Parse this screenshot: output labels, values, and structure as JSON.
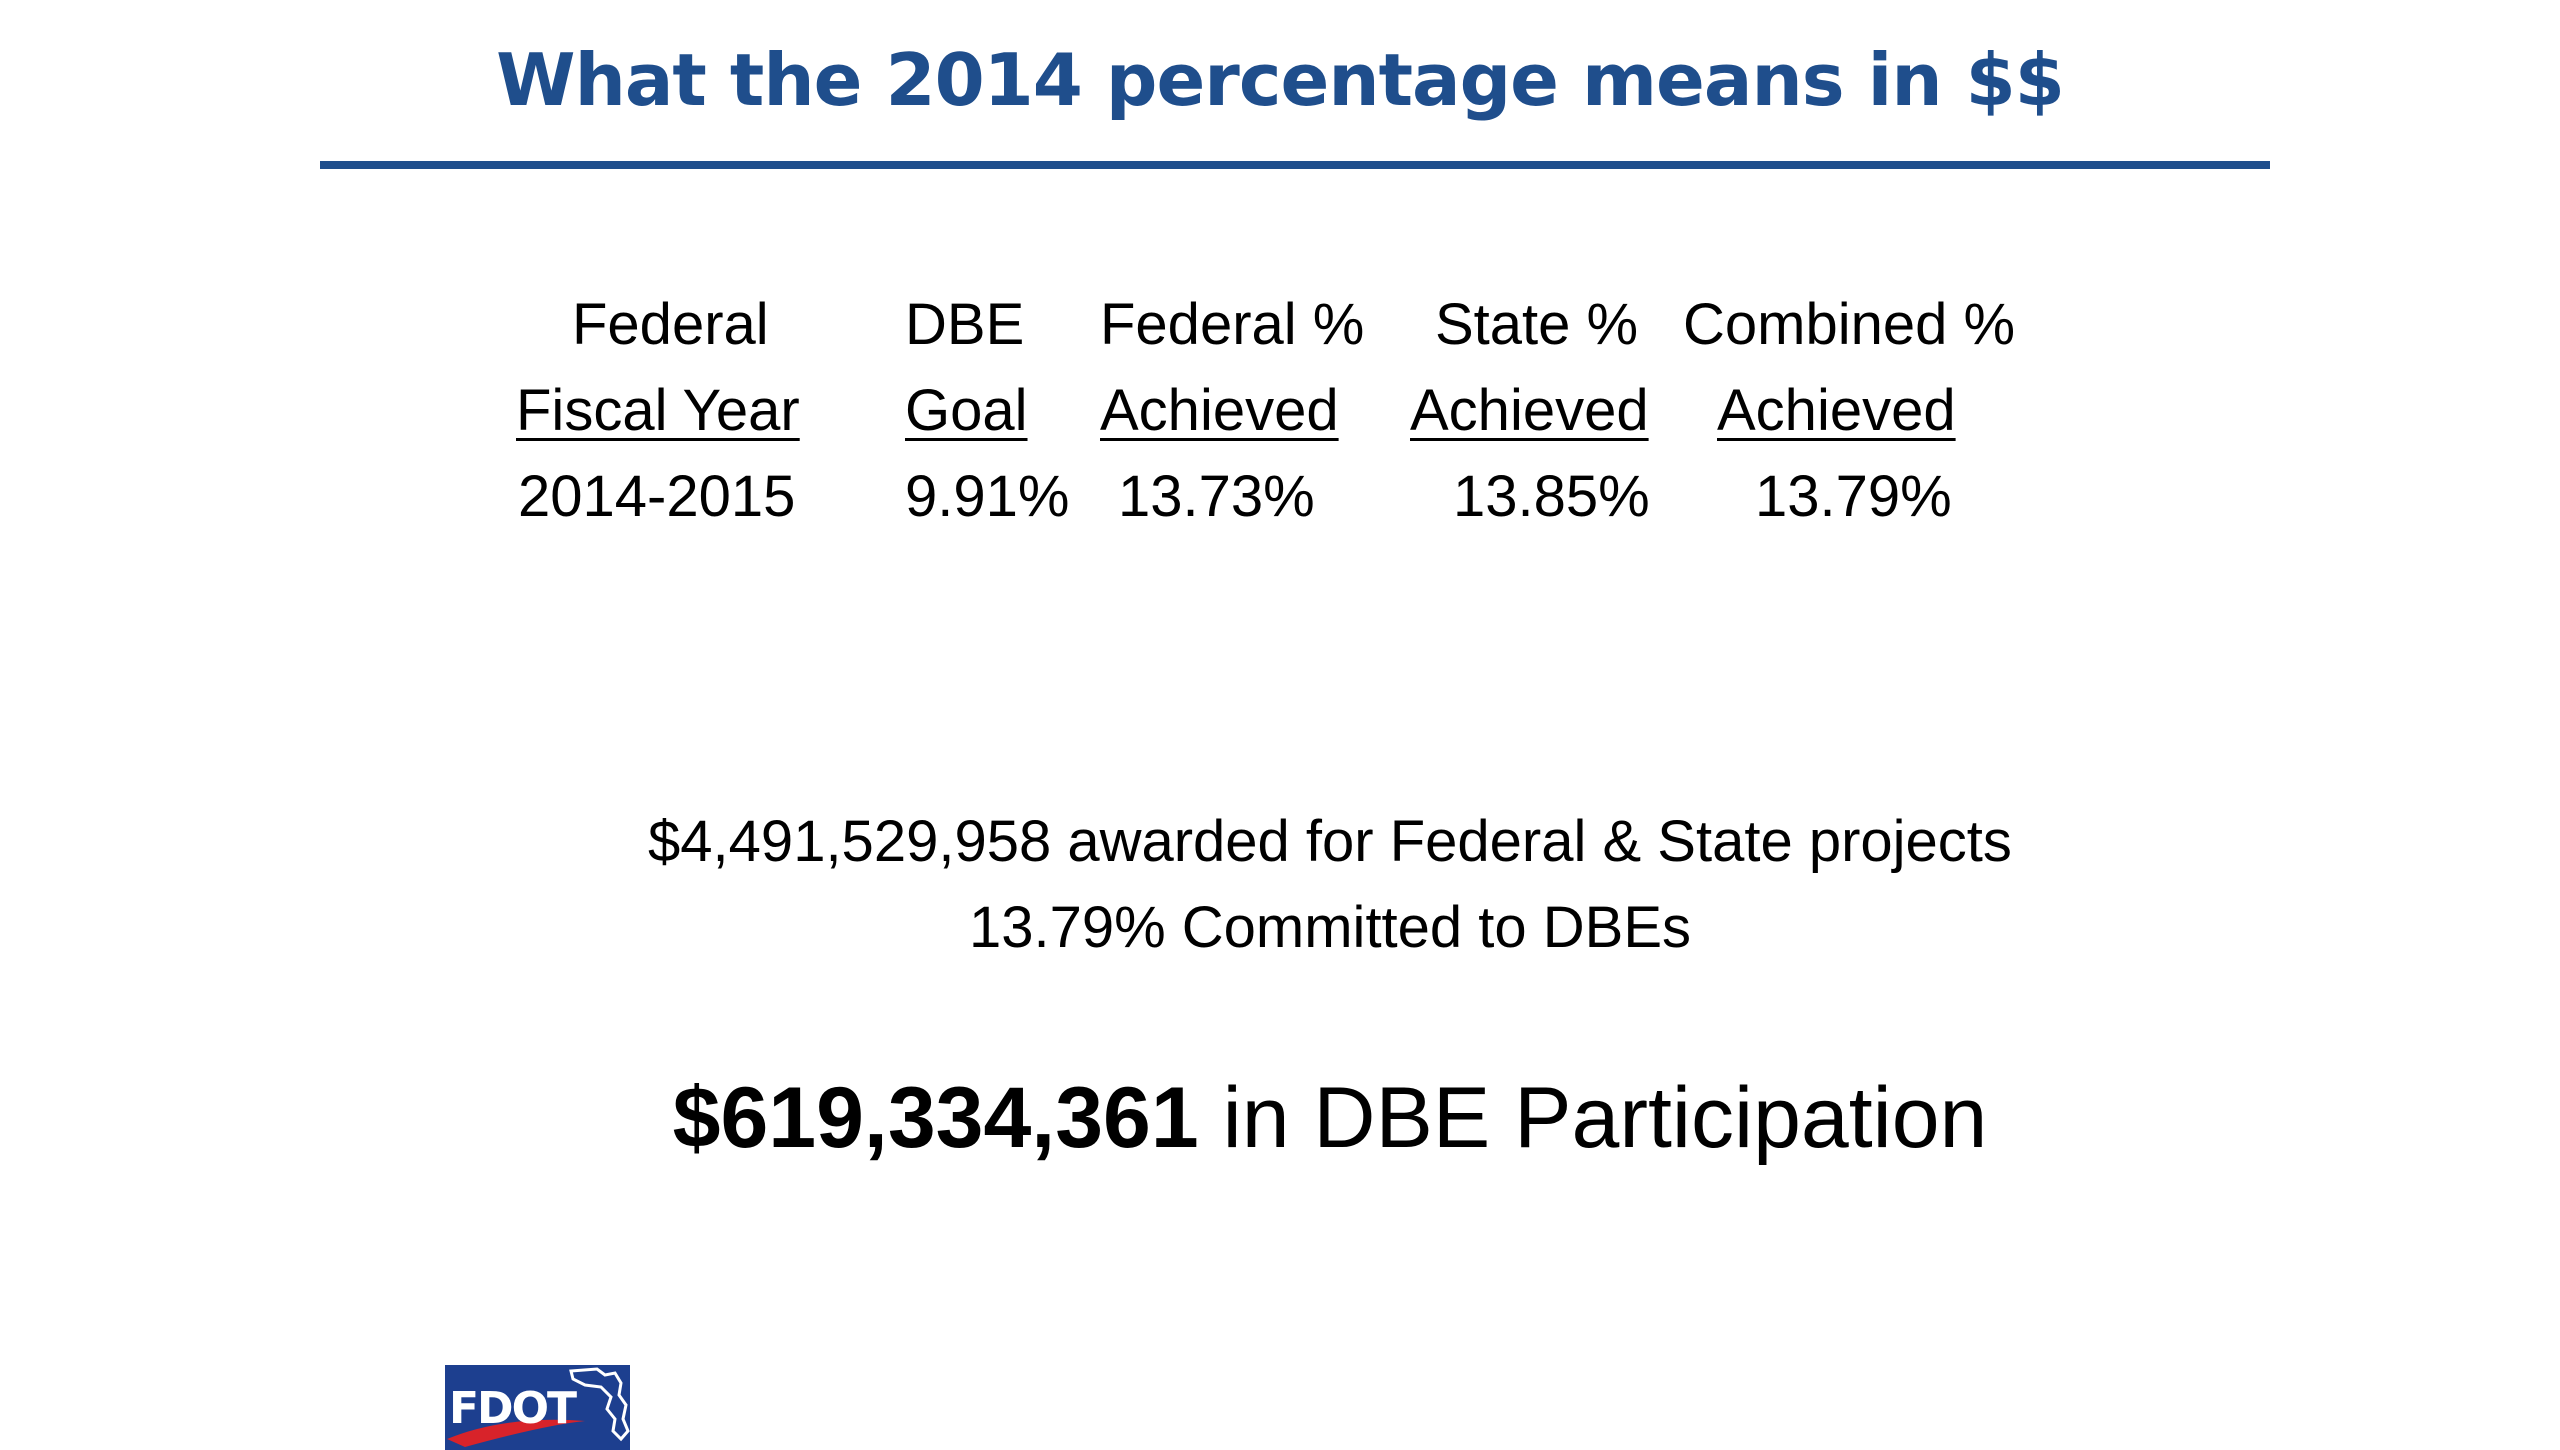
{
  "slide": {
    "title": "What the 2014 percentage means in $$",
    "title_color": "#1f4e8c"
  },
  "table": {
    "headers_line1": [
      "Federal",
      "DBE",
      "Federal %",
      "State %",
      "Combined %"
    ],
    "headers_line2": [
      "Fiscal Year",
      "Goal",
      "Achieved",
      "Achieved",
      "Achieved"
    ],
    "row": [
      "2014-2015",
      "9.91%",
      "13.73%",
      "13.85%",
      "13.79%"
    ]
  },
  "summary": {
    "awarded_line": "$4,491,529,958 awarded for Federal & State projects",
    "committed_line": "13.79% Committed to DBEs",
    "participation_amount": "$619,334,361",
    "participation_text": " in DBE Participation"
  },
  "logo": {
    "text": "FDOT",
    "icon": "fdot-logo-icon",
    "background": "#1d3f8f",
    "swoosh_color": "#d8232a"
  }
}
